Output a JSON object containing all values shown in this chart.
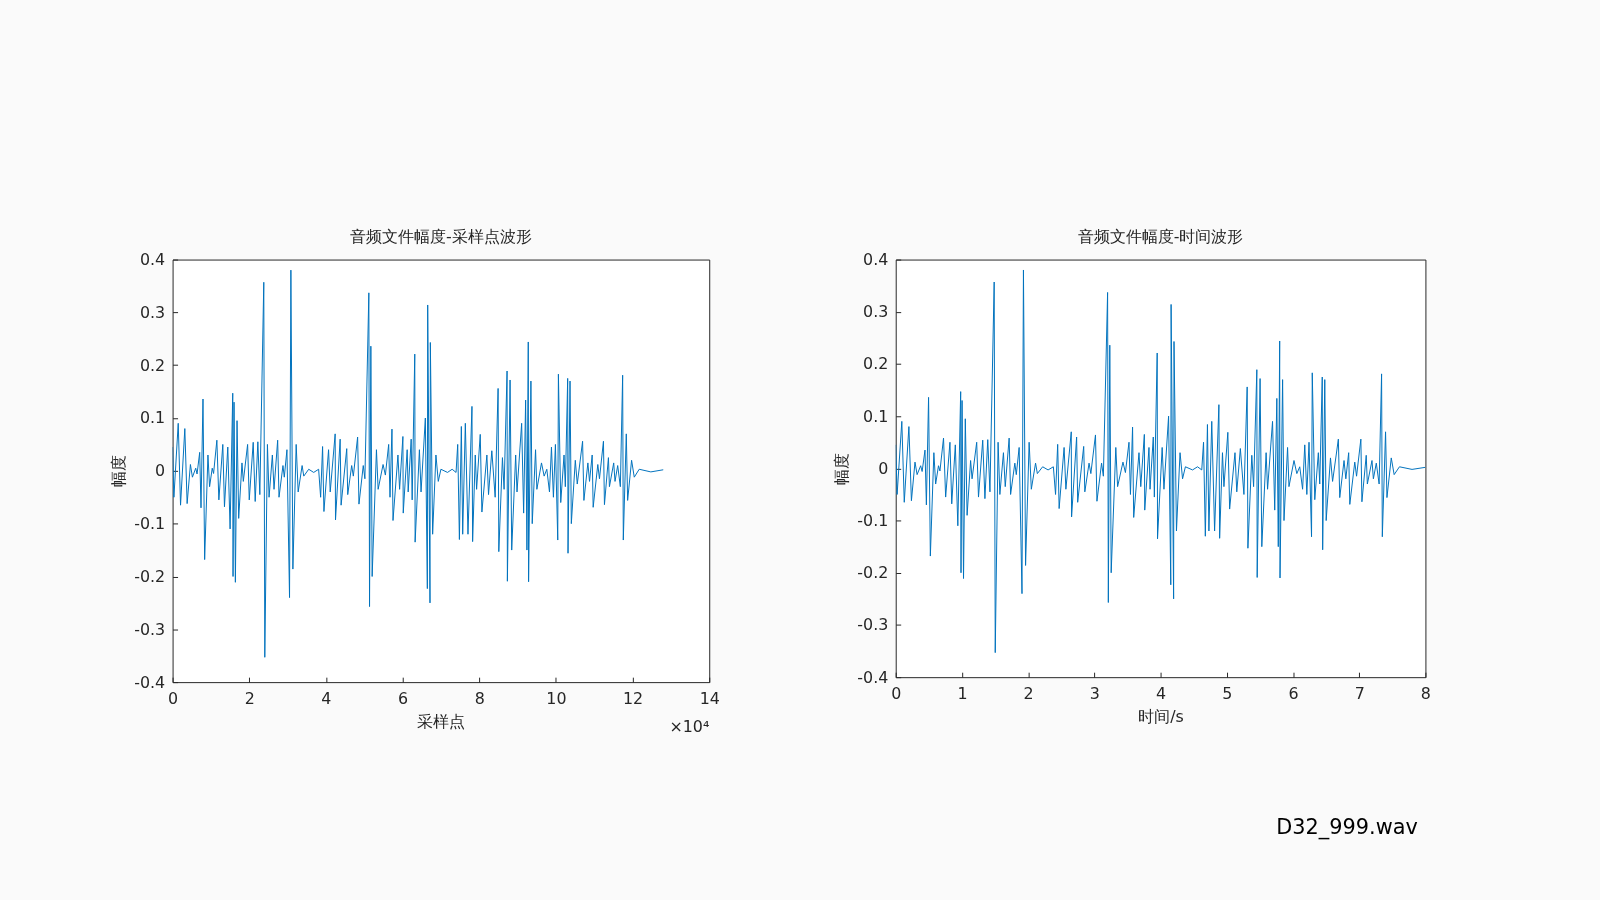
{
  "chart_data": [
    {
      "type": "line",
      "title": "音频文件幅度-采样点波形",
      "xlabel": "采样点",
      "ylabel": "幅度",
      "color": "#0072bd",
      "xlim": [
        0,
        14
      ],
      "xticks": [
        0,
        2,
        4,
        6,
        8,
        10,
        12,
        14
      ],
      "ylim": [
        -0.4,
        0.4
      ],
      "yticks": [
        -0.4,
        -0.3,
        -0.2,
        -0.1,
        0,
        0.1,
        0.2,
        0.3,
        0.4
      ],
      "annotations": [
        "×10⁴"
      ],
      "x": [
        0,
        0.034,
        0.147,
        0.207,
        0.319,
        0.379,
        0.465,
        0.517,
        0.603,
        0.638,
        0.707,
        0.741,
        0.793,
        0.836,
        0.922,
        0.965,
        1.034,
        1.069,
        1.155,
        1.207,
        1.31,
        1.353,
        1.44,
        1.5,
        1.569,
        1.577,
        1.603,
        1.638,
        1.681,
        1.724,
        1.81,
        1.845,
        1.957,
        2.0,
        2.103,
        2.155,
        2.224,
        2.276,
        2.379,
        2.405,
        2.474,
        2.517,
        2.603,
        2.646,
        2.741,
        2.776,
        2.879,
        2.914,
        2.983,
        3.051,
        3.086,
        3.138,
        3.224,
        3.276,
        3.379,
        3.422,
        3.551,
        3.681,
        3.81,
        3.862,
        3.913,
        3.948,
        4.069,
        4.112,
        4.241,
        4.25,
        4.371,
        4.396,
        4.543,
        4.569,
        4.672,
        4.715,
        4.827,
        4.862,
        4.974,
        5.017,
        5.12,
        5.138,
        5.172,
        5.206,
        5.318,
        5.362,
        5.491,
        5.551,
        5.637,
        5.672,
        5.723,
        5.75,
        5.879,
        5.922,
        6.008,
        6.017,
        6.12,
        6.146,
        6.224,
        6.25,
        6.318,
        6.327,
        6.439,
        6.482,
        6.594,
        6.646,
        6.655,
        6.715,
        6.724,
        6.784,
        6.87,
        6.931,
        7.0,
        7.172,
        7.292,
        7.395,
        7.438,
        7.482,
        7.533,
        7.568,
        7.637,
        7.706,
        7.81,
        7.827,
        7.896,
        7.931,
        8.026,
        8.069,
        8.199,
        8.242,
        8.328,
        8.415,
        8.492,
        8.51,
        8.605,
        8.648,
        8.726,
        8.734,
        8.804,
        8.847,
        8.95,
        8.985,
        9.106,
        9.158,
        9.21,
        9.244,
        9.279,
        9.287,
        9.348,
        9.382,
        9.469,
        9.503,
        9.624,
        9.693,
        9.763,
        9.832,
        9.884,
        9.935,
        9.987,
        10.048,
        10.065,
        10.126,
        10.212,
        10.246,
        10.307,
        10.316,
        10.368,
        10.402,
        10.506,
        10.557,
        10.696,
        10.73,
        10.834,
        10.877,
        10.946,
        10.972,
        11.093,
        11.136,
        11.24,
        11.266,
        11.37,
        11.396,
        11.508,
        11.542,
        11.612,
        11.681,
        11.741,
        11.758,
        11.836,
        11.871,
        11.974,
        12.044,
        12.173,
        12.476,
        12.8
      ],
      "values": [
        0.045,
        -0.05,
        0.09,
        -0.065,
        0.08,
        -0.062,
        0.012,
        -0.012,
        0.005,
        -0.006,
        0.035,
        -0.07,
        0.136,
        -0.168,
        0.03,
        -0.03,
        0.005,
        -0.005,
        0.058,
        -0.055,
        0.05,
        -0.068,
        0.045,
        -0.11,
        0.147,
        -0.2,
        0.13,
        -0.211,
        0.095,
        -0.09,
        0.015,
        -0.02,
        0.05,
        -0.055,
        0.054,
        -0.058,
        0.055,
        -0.045,
        0.357,
        -0.353,
        0.05,
        -0.05,
        0.03,
        -0.035,
        0.058,
        -0.05,
        0.01,
        -0.012,
        0.04,
        -0.24,
        0.38,
        -0.186,
        0.05,
        -0.04,
        0.01,
        -0.01,
        0.003,
        -0.003,
        0.003,
        -0.05,
        0.046,
        -0.077,
        0.04,
        -0.04,
        0.07,
        -0.093,
        0.06,
        -0.065,
        0.042,
        -0.045,
        0.01,
        -0.01,
        0.064,
        -0.063,
        0.01,
        -0.015,
        0.337,
        -0.257,
        0.236,
        -0.2,
        0.04,
        -0.035,
        0.012,
        -0.008,
        0.05,
        -0.05,
        0.079,
        -0.094,
        0.03,
        -0.035,
        0.065,
        -0.08,
        0.04,
        -0.04,
        0.06,
        -0.055,
        0.221,
        -0.135,
        0.04,
        -0.04,
        0.1,
        -0.223,
        0.314,
        -0.25,
        0.243,
        -0.12,
        0.03,
        -0.02,
        0.003,
        -0.003,
        0.003,
        -0.003,
        0.05,
        -0.13,
        0.084,
        -0.12,
        0.09,
        -0.12,
        0.122,
        -0.134,
        0.03,
        -0.035,
        0.069,
        -0.078,
        0.03,
        -0.045,
        0.038,
        -0.05,
        0.156,
        -0.153,
        0.025,
        -0.035,
        0.189,
        -0.209,
        0.172,
        -0.15,
        0.03,
        -0.04,
        0.09,
        -0.08,
        0.134,
        -0.15,
        0.244,
        -0.21,
        0.17,
        -0.1,
        0.04,
        -0.035,
        0.015,
        -0.01,
        0.003,
        -0.04,
        0.045,
        -0.05,
        0.05,
        -0.131,
        0.183,
        -0.06,
        0.03,
        -0.03,
        0.175,
        -0.156,
        0.17,
        -0.1,
        0.02,
        -0.025,
        0.056,
        -0.056,
        0.015,
        -0.02,
        0.03,
        -0.069,
        0.012,
        -0.015,
        0.056,
        -0.064,
        0.025,
        -0.03,
        0.015,
        -0.02,
        0.01,
        -0.03,
        0.181,
        -0.131,
        0.07,
        -0.056,
        0.02,
        -0.012,
        0.003,
        -0.002,
        0.002
      ]
    },
    {
      "type": "line",
      "title": "音频文件幅度-时间波形",
      "xlabel": "时间/s",
      "ylabel": "幅度",
      "color": "#0072bd",
      "xlim": [
        0,
        8
      ],
      "xticks": [
        0,
        1,
        2,
        3,
        4,
        5,
        6,
        7,
        8
      ],
      "ylim": [
        -0.4,
        0.4
      ],
      "yticks": [
        -0.4,
        -0.3,
        -0.2,
        -0.1,
        0,
        0.1,
        0.2,
        0.3,
        0.4
      ],
      "annotations": [
        "D32_999.wav"
      ],
      "x": [
        0,
        0.021,
        0.092,
        0.129,
        0.199,
        0.237,
        0.291,
        0.323,
        0.377,
        0.399,
        0.442,
        0.463,
        0.496,
        0.523,
        0.576,
        0.603,
        0.646,
        0.668,
        0.722,
        0.754,
        0.819,
        0.846,
        0.9,
        0.938,
        0.981,
        0.986,
        1.002,
        1.024,
        1.051,
        1.078,
        1.131,
        1.153,
        1.223,
        1.25,
        1.314,
        1.347,
        1.39,
        1.423,
        1.487,
        1.503,
        1.546,
        1.573,
        1.627,
        1.654,
        1.713,
        1.735,
        1.799,
        1.821,
        1.864,
        1.907,
        1.929,
        1.961,
        2.015,
        2.048,
        2.112,
        2.139,
        2.219,
        2.301,
        2.381,
        2.414,
        2.446,
        2.468,
        2.543,
        2.57,
        2.651,
        2.656,
        2.732,
        2.748,
        2.839,
        2.856,
        2.92,
        2.947,
        3.017,
        3.039,
        3.109,
        3.136,
        3.2,
        3.211,
        3.233,
        3.254,
        3.324,
        3.351,
        3.432,
        3.469,
        3.523,
        3.545,
        3.577,
        3.594,
        3.674,
        3.701,
        3.755,
        3.761,
        3.825,
        3.841,
        3.89,
        3.906,
        3.949,
        3.954,
        4.024,
        4.051,
        4.121,
        4.154,
        4.159,
        4.197,
        4.203,
        4.24,
        4.294,
        4.332,
        4.375,
        4.483,
        4.558,
        4.622,
        4.649,
        4.676,
        4.708,
        4.73,
        4.773,
        4.816,
        4.881,
        4.892,
        4.935,
        4.957,
        5.016,
        5.043,
        5.124,
        5.151,
        5.205,
        5.259,
        5.308,
        5.319,
        5.378,
        5.405,
        5.454,
        5.459,
        5.503,
        5.529,
        5.594,
        5.616,
        5.691,
        5.724,
        5.756,
        5.778,
        5.799,
        5.804,
        5.843,
        5.864,
        5.918,
        5.939,
        6.015,
        6.058,
        6.102,
        6.145,
        6.178,
        6.209,
        6.242,
        6.28,
        6.291,
        6.329,
        6.383,
        6.404,
        6.442,
        6.448,
        6.48,
        6.501,
        6.566,
        6.598,
        6.685,
        6.706,
        6.771,
        6.798,
        6.841,
        6.858,
        6.933,
        6.96,
        7.025,
        7.041,
        7.106,
        7.123,
        7.193,
        7.214,
        7.258,
        7.301,
        7.338,
        7.349,
        7.398,
        7.419,
        7.484,
        7.528,
        7.608,
        7.798,
        8.0
      ],
      "values": [
        0.045,
        -0.05,
        0.09,
        -0.065,
        0.08,
        -0.062,
        0.012,
        -0.012,
        0.005,
        -0.006,
        0.035,
        -0.07,
        0.136,
        -0.168,
        0.03,
        -0.03,
        0.005,
        -0.005,
        0.058,
        -0.055,
        0.05,
        -0.068,
        0.045,
        -0.11,
        0.147,
        -0.2,
        0.13,
        -0.211,
        0.095,
        -0.09,
        0.015,
        -0.02,
        0.05,
        -0.055,
        0.054,
        -0.058,
        0.055,
        -0.045,
        0.357,
        -0.353,
        0.05,
        -0.05,
        0.03,
        -0.035,
        0.058,
        -0.05,
        0.01,
        -0.012,
        0.04,
        -0.24,
        0.38,
        -0.186,
        0.05,
        -0.04,
        0.01,
        -0.01,
        0.003,
        -0.003,
        0.003,
        -0.05,
        0.046,
        -0.077,
        0.04,
        -0.04,
        0.07,
        -0.093,
        0.06,
        -0.065,
        0.042,
        -0.045,
        0.01,
        -0.01,
        0.064,
        -0.063,
        0.01,
        -0.015,
        0.337,
        -0.257,
        0.236,
        -0.2,
        0.04,
        -0.035,
        0.012,
        -0.008,
        0.05,
        -0.05,
        0.079,
        -0.094,
        0.03,
        -0.035,
        0.065,
        -0.08,
        0.04,
        -0.04,
        0.06,
        -0.055,
        0.221,
        -0.135,
        0.04,
        -0.04,
        0.1,
        -0.223,
        0.314,
        -0.25,
        0.243,
        -0.12,
        0.03,
        -0.02,
        0.003,
        -0.003,
        0.003,
        -0.003,
        0.05,
        -0.13,
        0.084,
        -0.12,
        0.09,
        -0.12,
        0.122,
        -0.134,
        0.03,
        -0.035,
        0.069,
        -0.078,
        0.03,
        -0.045,
        0.038,
        -0.05,
        0.156,
        -0.153,
        0.025,
        -0.035,
        0.189,
        -0.209,
        0.172,
        -0.15,
        0.03,
        -0.04,
        0.09,
        -0.08,
        0.134,
        -0.15,
        0.244,
        -0.21,
        0.17,
        -0.1,
        0.04,
        -0.035,
        0.015,
        -0.01,
        0.003,
        -0.04,
        0.045,
        -0.05,
        0.05,
        -0.131,
        0.183,
        -0.06,
        0.03,
        -0.03,
        0.175,
        -0.156,
        0.17,
        -0.1,
        0.02,
        -0.025,
        0.056,
        -0.056,
        0.015,
        -0.02,
        0.03,
        -0.069,
        0.012,
        -0.015,
        0.056,
        -0.064,
        0.025,
        -0.03,
        0.015,
        -0.02,
        0.01,
        -0.03,
        0.181,
        -0.131,
        0.07,
        -0.056,
        0.02,
        -0.012,
        0.003,
        -0.002,
        0.002
      ]
    }
  ]
}
